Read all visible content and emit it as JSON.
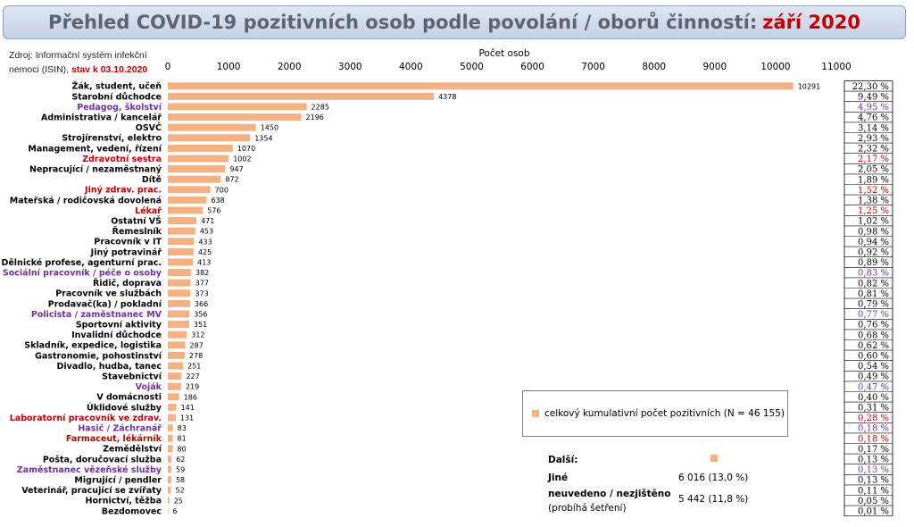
{
  "title": {
    "main": "Přehled COVID-19 pozitivních osob podle povolání / oborů činností:",
    "highlight": "září 2020"
  },
  "source": {
    "text": "Zdroj: Informační systém infekční nemoci (ISIN), ",
    "date": "stav k 03.10.2020"
  },
  "legend": {
    "label": "celkový kumulativní počet pozitivních (N = 46 155)"
  },
  "extra": {
    "heading": "Další:",
    "rows": [
      {
        "label": "Jiné",
        "value": "6 016 (13,0 %)"
      },
      {
        "label": "neuvedeno / nezjištěno",
        "value": "5 442 (11,8 %)"
      },
      {
        "label": "(probíhá šetření)",
        "value": ""
      }
    ]
  },
  "colors": {
    "bar": "#f4b183",
    "default_label": "#000000",
    "health": "#c00000",
    "service": "#7030a0",
    "title_highlight": "#c00000"
  },
  "chart_data": {
    "type": "bar",
    "orientation": "horizontal",
    "xlabel": "Počet osob",
    "xlim": [
      0,
      11000
    ],
    "xticks": [
      "0",
      "1000",
      "2000",
      "3000",
      "4000",
      "5000",
      "6000",
      "7000",
      "8000",
      "9000",
      "10000",
      "11000"
    ],
    "categories": [
      "Žák, student, učeň",
      "Starobní důchodce",
      "Pedagog, školství",
      "Administrativa / kancelář",
      "OSVČ",
      "Strojírenství, elektro",
      "Management, vedení, řízení",
      "Zdravotní sestra",
      "Nepracující / nezaměstnaný",
      "Dítě",
      "Jiný zdrav. prac.",
      "Mateřská / rodičovská dovolená",
      "Lékař",
      "Ostatní VŠ",
      "Řemeslník",
      "Pracovník v IT",
      "Jiný potravinář",
      "Dělnické profese, agenturní prac.",
      "Sociální pracovník / péče o osoby",
      "Řidič, doprava",
      "Pracovník ve službách",
      "Prodavač(ka) / pokladní",
      "Policista / zaměstnanec MV",
      "Sportovní aktivity",
      "Invalidní důchodce",
      "Skladník, expedice, logistika",
      "Gastronomie, pohostinství",
      "Divadlo, hudba, tanec",
      "Stavebnictví",
      "Voják",
      "V domácnosti",
      "Úklidové služby",
      "Laboratorní pracovník ve zdrav.",
      "Hasič / Záchranář",
      "Farmaceut, lékárník",
      "Zemědělství",
      "Pošta, doručovací služba",
      "Zaměstnanec vězeňské služby",
      "Migrující / pendler",
      "Veterinář, pracující se zvířaty",
      "Hornictví, těžba",
      "Bezdomovec"
    ],
    "values": [
      10291,
      4378,
      2285,
      2196,
      1450,
      1354,
      1070,
      1002,
      947,
      872,
      700,
      638,
      576,
      471,
      453,
      433,
      425,
      413,
      382,
      377,
      373,
      366,
      356,
      351,
      312,
      287,
      278,
      251,
      227,
      219,
      186,
      141,
      131,
      83,
      81,
      80,
      62,
      59,
      58,
      52,
      25,
      6
    ],
    "percent_labels": [
      "22,30 %",
      "9,49 %",
      "4,95 %",
      "4,76 %",
      "3,14 %",
      "2,93 %",
      "2,32 %",
      "2,17 %",
      "2,05 %",
      "1,89 %",
      "1,52 %",
      "1,38 %",
      "1,25 %",
      "1,02 %",
      "0,98 %",
      "0,94 %",
      "0,92 %",
      "0,89 %",
      "0,83 %",
      "0,82 %",
      "0,81 %",
      "0,79 %",
      "0,77 %",
      "0,76 %",
      "0,68 %",
      "0,62 %",
      "0,60 %",
      "0,54 %",
      "0,49 %",
      "0,47 %",
      "0,40 %",
      "0,31 %",
      "0,28 %",
      "0,18 %",
      "0,18 %",
      "0,17 %",
      "0,13 %",
      "0,13 %",
      "0,13 %",
      "0,11 %",
      "0,05 %",
      "0,01 %"
    ],
    "label_groups": [
      "default",
      "default",
      "service",
      "default",
      "default",
      "default",
      "default",
      "health",
      "default",
      "default",
      "health",
      "default",
      "health",
      "default",
      "default",
      "default",
      "default",
      "default",
      "service",
      "default",
      "default",
      "default",
      "service",
      "default",
      "default",
      "default",
      "default",
      "default",
      "default",
      "service",
      "default",
      "default",
      "health",
      "service",
      "health",
      "default",
      "default",
      "service",
      "default",
      "default",
      "default",
      "default"
    ],
    "grid": false,
    "legend_position": "lower-right"
  }
}
